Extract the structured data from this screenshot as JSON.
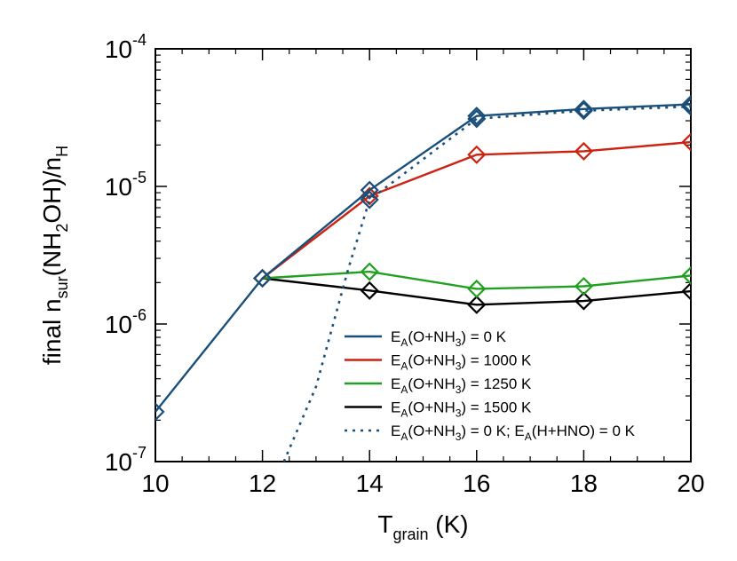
{
  "chart_data": {
    "type": "line",
    "xlabel": {
      "main": "T",
      "sub": "grain",
      "unit": " (K)"
    },
    "ylabel": {
      "prefix": "final n",
      "sub1": "sur",
      "mid": "(NH",
      "sub2": "2",
      "mid2": "OH)/n",
      "sub3": "H"
    },
    "xlim": [
      10,
      20
    ],
    "ylim": [
      1e-07,
      0.0001
    ],
    "y_scale": "log",
    "x_ticks": [
      10,
      12,
      14,
      16,
      18,
      20
    ],
    "y_ticks": [
      {
        "value": 1e-07,
        "base": "10",
        "exp": "-7"
      },
      {
        "value": 1e-06,
        "base": "10",
        "exp": "-6"
      },
      {
        "value": 1e-05,
        "base": "10",
        "exp": "-5"
      },
      {
        "value": 0.0001,
        "base": "10",
        "exp": "-4"
      }
    ],
    "legend_position": "bottom-right",
    "series": [
      {
        "legend": "E_A(O+NH_3) = 0 K",
        "color": "#1a4f7a",
        "style": "solid",
        "markers": true,
        "x": [
          10,
          12,
          14,
          16,
          18,
          20
        ],
        "y": [
          2.3e-07,
          2.15e-06,
          9.4e-06,
          3.25e-05,
          3.65e-05,
          3.95e-05
        ]
      },
      {
        "legend": "E_A(O+NH_3) = 1000 K",
        "color": "#cc2211",
        "style": "solid",
        "markers": true,
        "x": [
          12,
          14,
          16,
          18,
          20
        ],
        "y": [
          2.15e-06,
          8.5e-06,
          1.7e-05,
          1.8e-05,
          2.1e-05
        ]
      },
      {
        "legend": "E_A(O+NH_3) = 1250 K",
        "color": "#22a022",
        "style": "solid",
        "markers": true,
        "x": [
          12,
          14,
          16,
          18,
          20
        ],
        "y": [
          2.15e-06,
          2.4e-06,
          1.8e-06,
          1.88e-06,
          2.25e-06
        ]
      },
      {
        "legend": "E_A(O+NH_3) = 1500 K",
        "color": "#000000",
        "style": "solid",
        "markers": true,
        "x": [
          12,
          14,
          16,
          18,
          20
        ],
        "y": [
          2.15e-06,
          1.75e-06,
          1.38e-06,
          1.47e-06,
          1.73e-06
        ]
      },
      {
        "legend": "E_A(O+NH_3) = 0 K; E_A(H+HNO) = 0 K",
        "color": "#1a4f7a",
        "style": "dotted",
        "markers": true,
        "x": [
          12.4,
          13.0,
          13.6,
          14,
          16,
          18,
          20
        ],
        "y": [
          1e-07,
          3.5e-07,
          2.5e-06,
          8e-06,
          3.1e-05,
          3.55e-05,
          3.8e-05
        ],
        "marker_x": [
          14,
          16,
          18,
          20
        ]
      }
    ]
  }
}
